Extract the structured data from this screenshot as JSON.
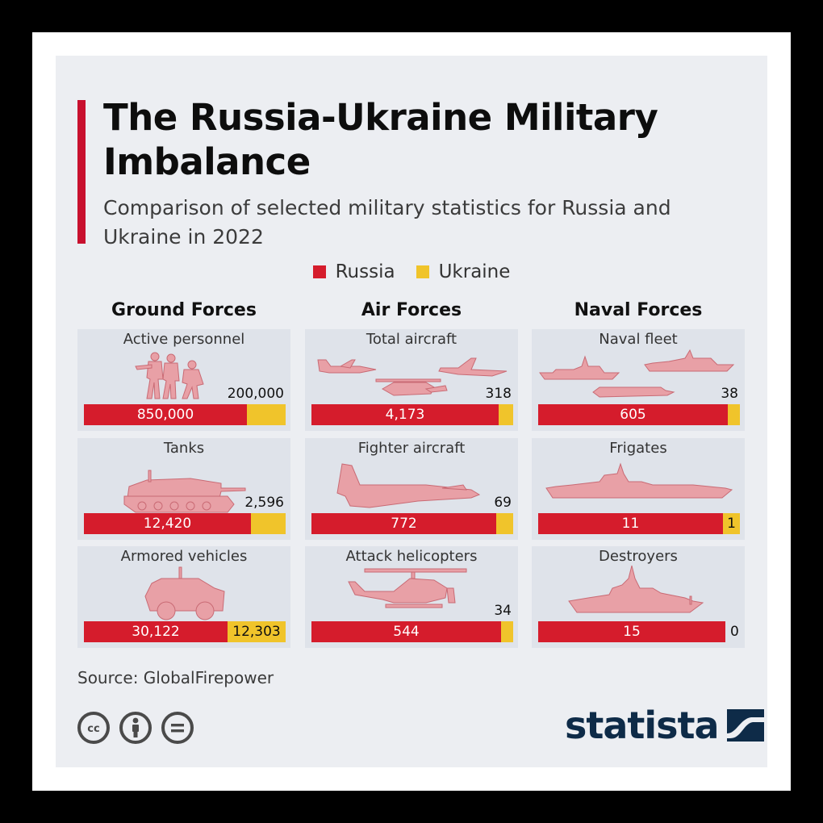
{
  "title": "The Russia-Ukraine Military Imbalance",
  "subtitle": "Comparison of selected military statistics for Russia and Ukraine in 2022",
  "legend": {
    "russia": "Russia",
    "ukraine": "Ukraine"
  },
  "colors": {
    "russia": "#d51c2c",
    "ukraine": "#f0c42b",
    "accent": "#c8102e",
    "silhouette": "#e8a0a6",
    "logo": "#0e2b48"
  },
  "source": "Source: GlobalFirepower",
  "logo_text": "statista",
  "cc_icons": [
    "cc-icon",
    "by-icon",
    "nd-icon"
  ],
  "chart_data": [
    {
      "type": "bar",
      "group": "Ground Forces",
      "panels": [
        {
          "label": "Active personnel",
          "icon": "soldiers-icon",
          "russia": 850000,
          "russia_label": "850,000",
          "ukraine": 200000,
          "ukraine_label": "200,000"
        },
        {
          "label": "Tanks",
          "icon": "tank-icon",
          "russia": 12420,
          "russia_label": "12,420",
          "ukraine": 2596,
          "ukraine_label": "2,596"
        },
        {
          "label": "Armored vehicles",
          "icon": "armored-vehicle-icon",
          "russia": 30122,
          "russia_label": "30,122",
          "ukraine": 12303,
          "ukraine_label": "12,303"
        }
      ]
    },
    {
      "type": "bar",
      "group": "Air Forces",
      "panels": [
        {
          "label": "Total aircraft",
          "icon": "aircraft-icon",
          "russia": 4173,
          "russia_label": "4,173",
          "ukraine": 318,
          "ukraine_label": "318"
        },
        {
          "label": "Fighter aircraft",
          "icon": "fighter-jet-icon",
          "russia": 772,
          "russia_label": "772",
          "ukraine": 69,
          "ukraine_label": "69"
        },
        {
          "label": "Attack helicopters",
          "icon": "helicopter-icon",
          "russia": 544,
          "russia_label": "544",
          "ukraine": 34,
          "ukraine_label": "34"
        }
      ]
    },
    {
      "type": "bar",
      "group": "Naval Forces",
      "panels": [
        {
          "label": "Naval fleet",
          "icon": "fleet-icon",
          "russia": 605,
          "russia_label": "605",
          "ukraine": 38,
          "ukraine_label": "38"
        },
        {
          "label": "Frigates",
          "icon": "frigate-icon",
          "russia": 11,
          "russia_label": "11",
          "ukraine": 1,
          "ukraine_label": "1"
        },
        {
          "label": "Destroyers",
          "icon": "destroyer-icon",
          "russia": 15,
          "russia_label": "15",
          "ukraine": 0,
          "ukraine_label": "0"
        }
      ]
    }
  ]
}
